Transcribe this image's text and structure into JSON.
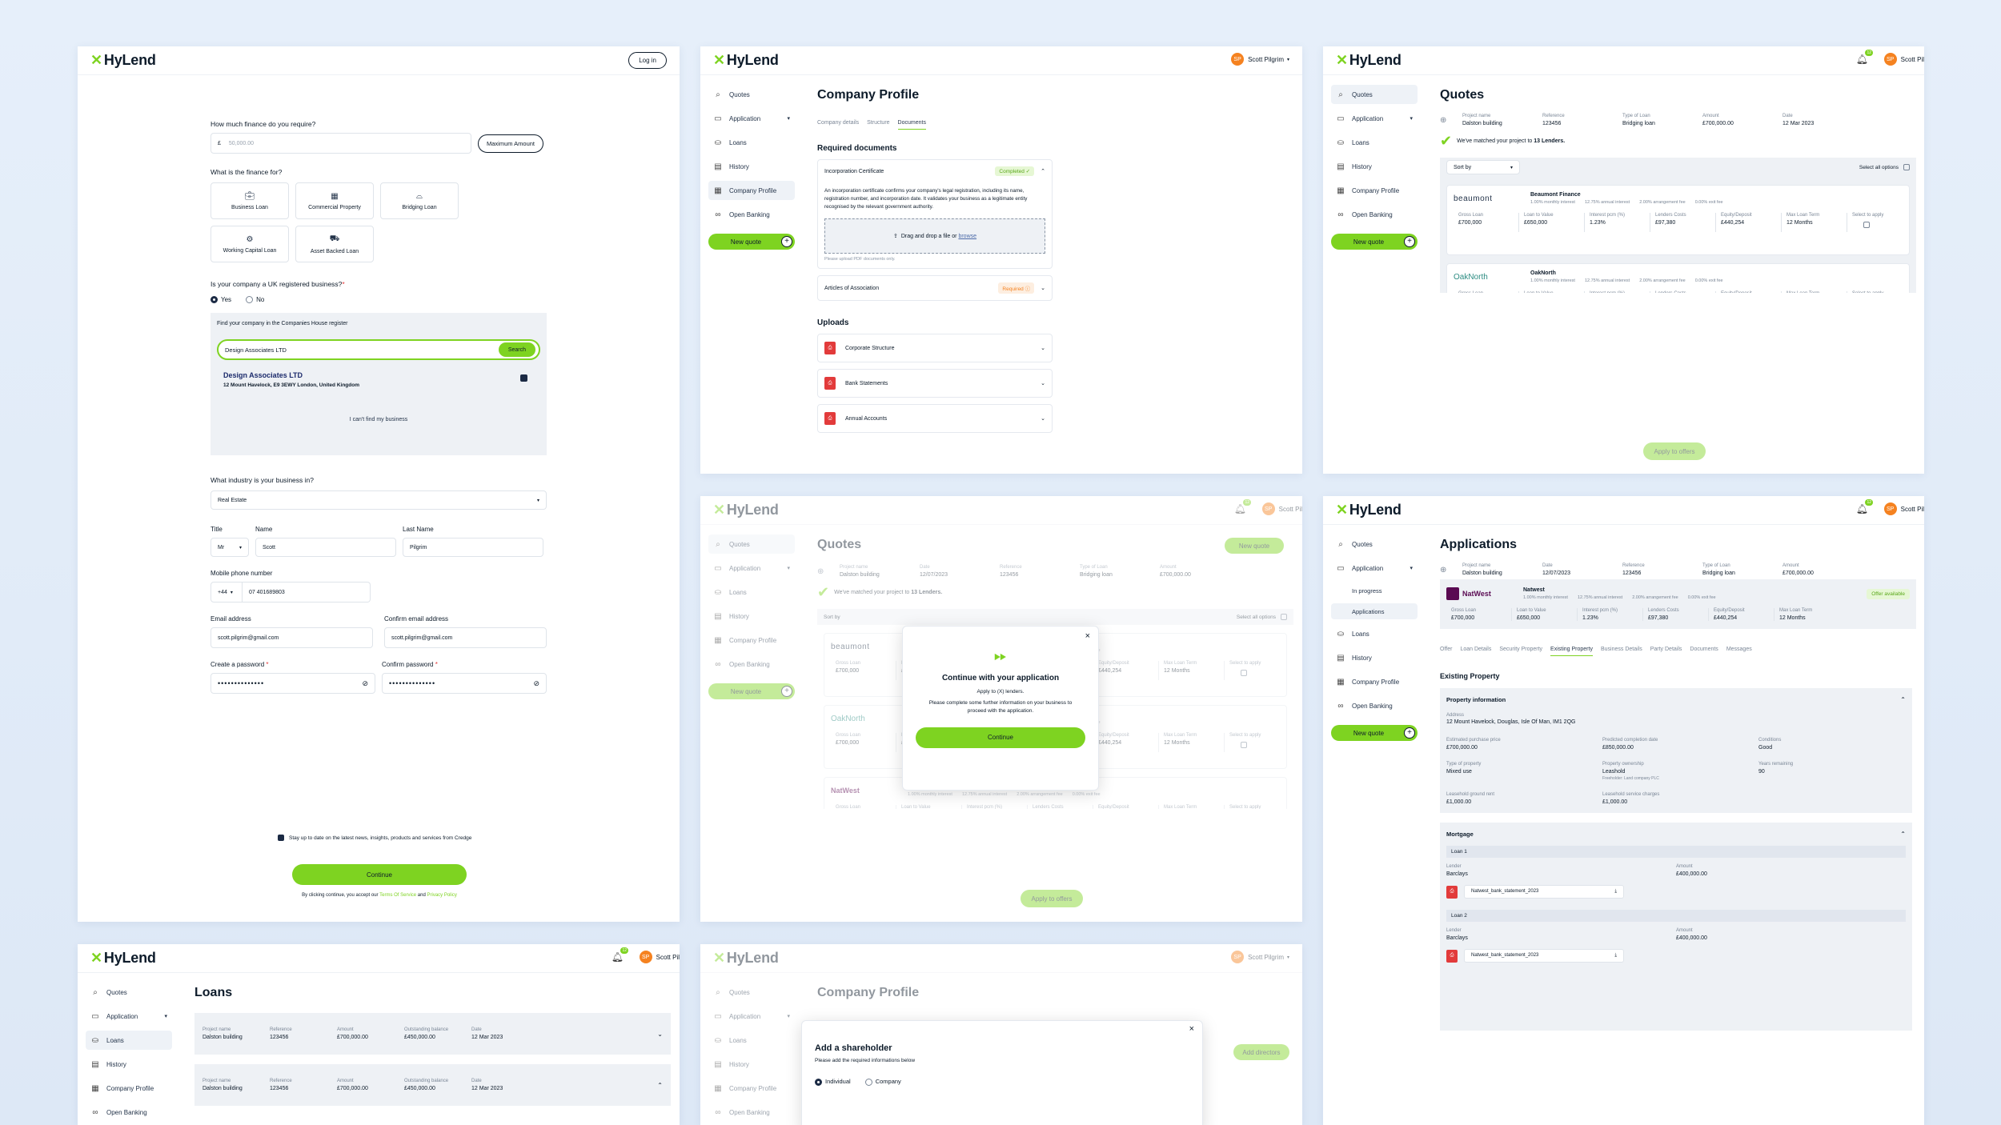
{
  "brand": {
    "name": "HyLend",
    "accent": "#7ed321"
  },
  "p1": {
    "login": "Log in",
    "q_amount": "How much finance do you require?",
    "currency": "£",
    "amount_ph": "50,000.00",
    "max_btn": "Maximum Amount",
    "q_for": "What is the finance for?",
    "types": [
      {
        "label": "Business Loan",
        "icon": "bag-icon"
      },
      {
        "label": "Commercial Property",
        "icon": "building-icon"
      },
      {
        "label": "Bridging Loan",
        "icon": "bridge-icon"
      },
      {
        "label": "Working Capital Loan",
        "icon": "gear-icon"
      },
      {
        "label": "Asset Backed Loan",
        "icon": "truck-icon"
      }
    ],
    "q_uk": "Is your company a UK registered business?",
    "yes": "Yes",
    "no": "No",
    "find_label": "Find your company in the Companies House register",
    "search_val": "Design Associates LTD",
    "search_btn": "Search",
    "company_name": "Design Associates LTD",
    "company_addr": "12 Mount Havelock, E9 3EWY London, United Kingdom",
    "cant_find": "I can't find my business",
    "q_industry": "What industry is your business in?",
    "industry": "Real Estate",
    "title_lbl": "Title",
    "name_lbl": "Name",
    "last_lbl": "Last Name",
    "title_val": "Mr",
    "name_val": "Scott",
    "last_val": "Pilgrim",
    "phone_lbl": "Mobile phone number",
    "phone_code": "+44",
    "phone_val": "07 401689803",
    "email_lbl": "Email address",
    "cemail_lbl": "Confirm email address",
    "email_val": "scott.pilgrim@gmail.com",
    "pw_lbl": "Create a password",
    "cpw_lbl": "Confirm password",
    "pw_val": "••••••••••••••",
    "newsletter": "Stay up to date on the latest news, insights, products and services from Credge",
    "continue": "Continue",
    "terms_pre": "By clicking continue, you accept our",
    "terms": "Terms Of Service",
    "and": "and",
    "privacy": "Privacy Policy"
  },
  "nav": {
    "quotes": "Quotes",
    "application": "Application",
    "loans": "Loans",
    "history": "History",
    "profile": "Company Profile",
    "banking": "Open Banking",
    "newq": "New quote",
    "inprog": "In progress",
    "apps": "Applications"
  },
  "user": {
    "name": "Scott Pilgrim",
    "short": "Scott Pil",
    "initials": "SP",
    "bell": "12"
  },
  "p2": {
    "title": "Company Profile",
    "tabs": [
      "Company details",
      "Structure",
      "Documents"
    ],
    "req": "Required documents",
    "inc": "Incorporation Certificate",
    "completed": "Completed",
    "inc_desc": "An incorporation certificate confirms your company's legal registration, including its name, registration number, and incorporation date. It validates your business as a legitimate entity recognised by the relevant government authority.",
    "drop": "Drag and drop a file or",
    "browse": "browse",
    "pdf_note": "Please upload PDF documents only.",
    "articles": "Articles of Association",
    "required": "Required",
    "uploads": "Uploads",
    "ups": [
      "Corporate Structure",
      "Bank Statements",
      "Annual Accounts"
    ]
  },
  "p3": {
    "title": "Quotes",
    "proj_l": "Project name",
    "proj": "Dalston building",
    "ref_l": "Reference",
    "ref": "123456",
    "type_l": "Type of Loan",
    "type": "Bridging loan",
    "amt_l": "Amount",
    "amt": "£700,000.00",
    "date_l": "Date",
    "date": "12 Mar 2023",
    "matched_pre": "We've matched your project to",
    "matched_n": "13 Lenders.",
    "sort": "Sort by",
    "select_all": "Select all options",
    "rate_line": [
      "1.00% monthly interest",
      "12.75% annual interest",
      "2.00% arrangement fee",
      "0.00% exit fee"
    ],
    "cols": [
      "Gross Loan",
      "Loan to Value",
      "Interest pcm (%)",
      "Lenders Costs",
      "Equity/Deposit",
      "Max Loan Term",
      "Select to apply"
    ],
    "vals": [
      "£700,000",
      "£650,000",
      "1.23%",
      "£97,380",
      "£440,254",
      "12 Months"
    ],
    "lenders": [
      {
        "logo": "beaumont",
        "name": "Beaumont Finance"
      },
      {
        "logo": "OakNorth",
        "name": "OakNorth"
      },
      {
        "logo": "NatWest",
        "name": "OakNorth"
      }
    ],
    "apply": "Apply to offers"
  },
  "p4": {
    "title": "Quotes",
    "newq": "New quote",
    "date": "12/07/2023",
    "modal_title": "Continue with your application",
    "modal_sub": "Apply to (X) lenders.",
    "modal_body": "Please complete some further information on your business to proceed with the application.",
    "modal_btn": "Continue",
    "apply": "Apply to offers"
  },
  "p5": {
    "title": "Applications",
    "date": "12/07/2023",
    "offer": "Offer available",
    "lender": "NatWest",
    "lender_name": "Natwest",
    "cols": [
      "Gross Loan",
      "Loan to Value",
      "Interest pcm (%)",
      "Lenders Costs",
      "Equity/Deposit",
      "Max Loan Term"
    ],
    "tabs": [
      "Offer",
      "Loan Details",
      "Security Property",
      "Existing Property",
      "Business Details",
      "Party Details",
      "Documents",
      "Messages"
    ],
    "ep": "Existing Property",
    "pi": "Property information",
    "addr_l": "Address",
    "addr": "12 Mount Havelock, Douglas, Isle Of Man, IM1 2QG",
    "fields": [
      [
        "Estimated purchase price",
        "£700,000.00"
      ],
      [
        "Predicted completion date",
        "£850,000.00"
      ],
      [
        "Conditions",
        "Good"
      ],
      [
        "Type of property",
        "Mixed use"
      ],
      [
        "Property ownership",
        "Leashold"
      ],
      [
        "Years remaining",
        "90"
      ],
      [
        "Leasehold ground rent",
        "£1,000.00"
      ],
      [
        "Leasehold service charges",
        "£1,000.00"
      ]
    ],
    "freeholder": "Freeholder: Land company PLC",
    "mortgage": "Mortgage",
    "loan1": "Loan 1",
    "loan2": "Loan 2",
    "lender_l": "Lender",
    "lender_v": "Barclays",
    "amount_l": "Amount",
    "amount_v": "£400,000.00",
    "file": "Natwest_bank_statement_2023"
  },
  "p6": {
    "title": "Loans",
    "outstanding_l": "Outstanding balance",
    "outstanding": "£450,000.00"
  },
  "p7": {
    "title": "Company Profile",
    "add_dir": "Add directors",
    "modal_title": "Add a shareholder",
    "modal_sub": "Please add the required informations below",
    "ind": "Individual",
    "comp": "Company"
  }
}
